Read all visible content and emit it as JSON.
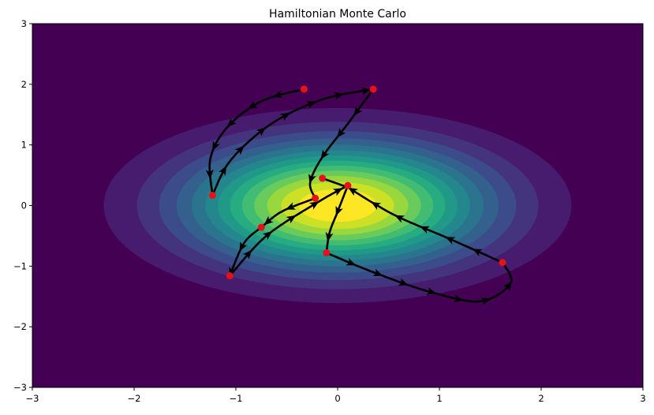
{
  "chart_data": {
    "type": "contour",
    "title": "Hamiltonian Monte Carlo",
    "xlabel": "",
    "ylabel": "",
    "xlim": [
      -3,
      3
    ],
    "ylim": [
      -3,
      3
    ],
    "x_ticks": [
      "−3",
      "−2",
      "−1",
      "0",
      "1",
      "2",
      "3"
    ],
    "y_ticks": [
      "−3",
      "−2",
      "−1",
      "0",
      "1",
      "2",
      "3"
    ],
    "x_tick_values": [
      -3,
      -2,
      -1,
      0,
      1,
      2,
      3
    ],
    "y_tick_values": [
      -3,
      -2,
      -1,
      0,
      1,
      2,
      3
    ],
    "grid": false,
    "density": {
      "center": [
        0,
        0
      ],
      "sigma_x": 1.0,
      "sigma_y": 0.7,
      "levels": 14,
      "colormap": "viridis"
    },
    "trajectories": [
      {
        "points": [
          [
            -0.33,
            1.92
          ],
          [
            -0.75,
            1.72
          ],
          [
            -1.08,
            1.3
          ],
          [
            -1.25,
            0.78
          ],
          [
            -1.23,
            0.17
          ]
        ]
      },
      {
        "points": [
          [
            -1.23,
            0.17
          ],
          [
            -1.05,
            0.75
          ],
          [
            -0.65,
            1.35
          ],
          [
            -0.15,
            1.75
          ],
          [
            0.35,
            1.92
          ]
        ]
      },
      {
        "points": [
          [
            0.35,
            1.92
          ],
          [
            0.1,
            1.35
          ],
          [
            -0.15,
            0.8
          ],
          [
            -0.27,
            0.38
          ],
          [
            -0.22,
            0.12
          ]
        ]
      },
      {
        "points": [
          [
            -0.22,
            0.12
          ],
          [
            -0.55,
            -0.1
          ],
          [
            -0.75,
            -0.36
          ]
        ]
      },
      {
        "points": [
          [
            -0.75,
            -0.36
          ],
          [
            -0.92,
            -0.62
          ],
          [
            -1.06,
            -1.16
          ]
        ]
      },
      {
        "points": [
          [
            -1.06,
            -1.16
          ],
          [
            -0.7,
            -0.5
          ],
          [
            -0.2,
            0.05
          ],
          [
            0.1,
            0.33
          ]
        ]
      },
      {
        "points": [
          [
            0.1,
            0.33
          ],
          [
            0.0,
            -0.1
          ],
          [
            -0.08,
            -0.45
          ],
          [
            -0.11,
            -0.78
          ]
        ]
      },
      {
        "points": [
          [
            -0.11,
            -0.78
          ],
          [
            0.35,
            -1.1
          ],
          [
            0.9,
            -1.42
          ],
          [
            1.4,
            -1.58
          ],
          [
            1.7,
            -1.28
          ],
          [
            1.62,
            -0.94
          ]
        ]
      },
      {
        "points": [
          [
            1.62,
            -0.94
          ],
          [
            1.1,
            -0.55
          ],
          [
            0.55,
            -0.15
          ],
          [
            0.1,
            0.3
          ]
        ]
      },
      {
        "points": [
          [
            0.1,
            0.3
          ],
          [
            -0.15,
            0.45
          ]
        ]
      }
    ],
    "samples": [
      [
        -0.33,
        1.92
      ],
      [
        -1.23,
        0.17
      ],
      [
        0.35,
        1.92
      ],
      [
        -0.22,
        0.12
      ],
      [
        -0.75,
        -0.36
      ],
      [
        -1.06,
        -1.16
      ],
      [
        0.1,
        0.33
      ],
      [
        -0.11,
        -0.78
      ],
      [
        1.62,
        -0.94
      ],
      [
        -0.15,
        0.45
      ]
    ],
    "colors": {
      "trajectory": "#000000",
      "sample": "#e8111a"
    }
  }
}
